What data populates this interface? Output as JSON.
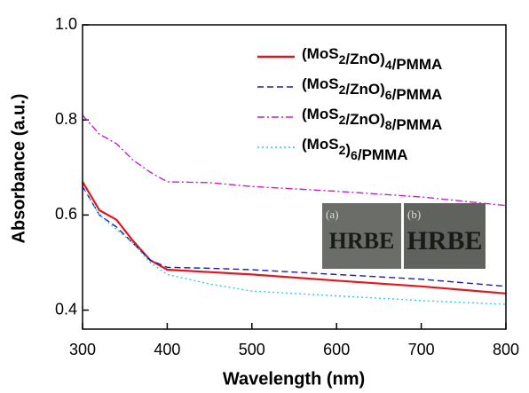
{
  "chart_data": {
    "type": "line",
    "xlabel": "Wavelength (nm)",
    "ylabel": "Absorbance (a.u.)",
    "x": [
      300,
      320,
      340,
      360,
      380,
      400,
      450,
      500,
      600,
      700,
      800
    ],
    "series": [
      {
        "name": "(MoS2/ZnO)4/PMMA",
        "color": "#e8141c",
        "style": "solid",
        "values": [
          0.67,
          0.61,
          0.59,
          0.545,
          0.505,
          0.485,
          0.48,
          0.475,
          0.462,
          0.45,
          0.435
        ]
      },
      {
        "name": "(MoS2/ZnO)6/PMMA",
        "color": "#1c1cb0",
        "style": "dashed",
        "values": [
          0.66,
          0.6,
          0.575,
          0.54,
          0.505,
          0.49,
          0.488,
          0.485,
          0.475,
          0.465,
          0.45
        ]
      },
      {
        "name": "(MoS2/ZnO)8/PMMA",
        "color": "#d01cd0",
        "style": "dashdot",
        "values": [
          0.81,
          0.77,
          0.75,
          0.715,
          0.69,
          0.67,
          0.668,
          0.66,
          0.65,
          0.638,
          0.62
        ]
      },
      {
        "name": "(MoS2)6/PMMA",
        "color": "#2ad0d8",
        "style": "dotted",
        "values": [
          0.66,
          0.6,
          0.57,
          0.54,
          0.5,
          0.475,
          0.455,
          0.44,
          0.43,
          0.42,
          0.412
        ]
      }
    ],
    "xlim": [
      300,
      800
    ],
    "xticks": [
      300,
      400,
      500,
      600,
      700,
      800
    ],
    "ylim": [
      0.36,
      1.0
    ],
    "yticks": [
      0.4,
      0.6,
      0.8,
      {
        "value": 1.0,
        "label": "1.0"
      }
    ],
    "legend": "upper right",
    "inset": [
      {
        "tag": "(a)",
        "text": "HRBE"
      },
      {
        "tag": "(b)",
        "text": "HRBE"
      }
    ]
  }
}
